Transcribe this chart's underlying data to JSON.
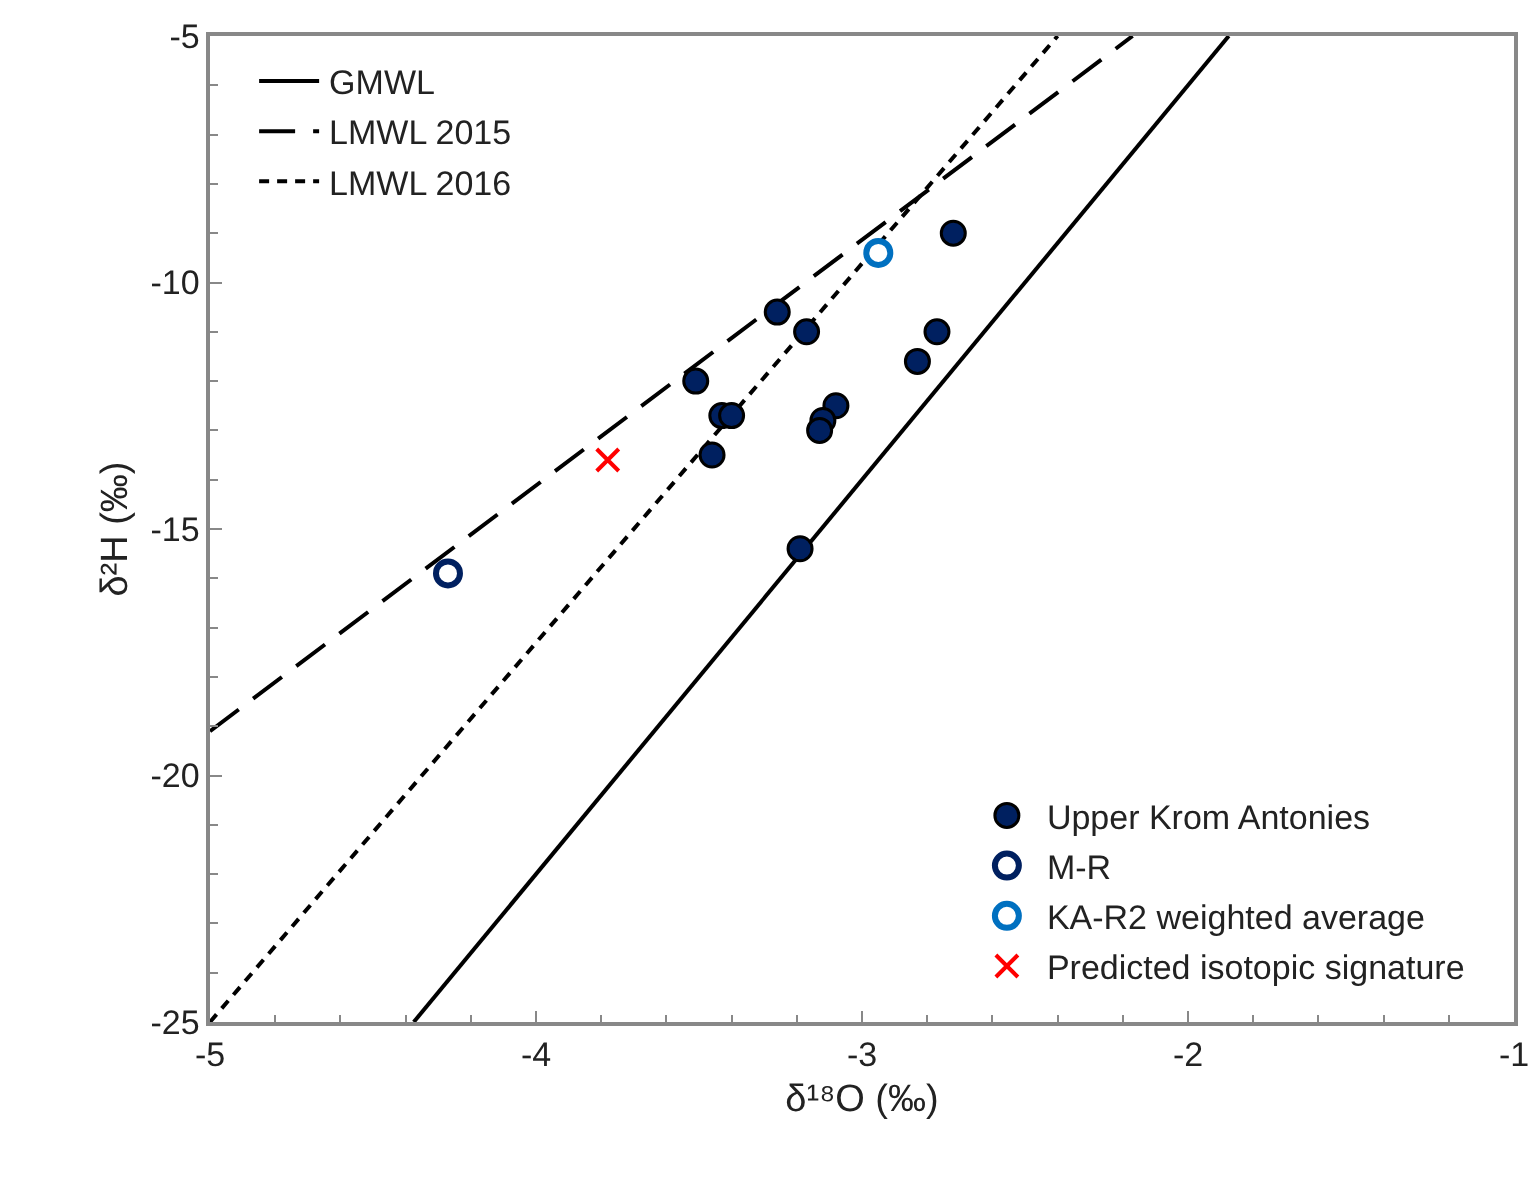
{
  "chart_data": {
    "type": "scatter",
    "xlabel": "δ¹⁸O (‰)",
    "ylabel": "δ²H (‰)",
    "xlim": [
      -5,
      -1
    ],
    "xticks": [
      -5,
      -4,
      -3,
      -2,
      -1
    ],
    "ylim": [
      -25,
      -5
    ],
    "yticks": [
      -25,
      -20,
      -15,
      -10,
      -5
    ],
    "grid": false,
    "legend": [
      "top left",
      "bottom right"
    ],
    "series": [
      {
        "name": "GMWL",
        "type": "line",
        "color": "#000000",
        "line_style": "solid",
        "marker": "none",
        "x": [
          -4.375,
          -1.875
        ],
        "values": [
          -25,
          -5
        ]
      },
      {
        "name": "LMWL 2015",
        "type": "line",
        "color": "#000000",
        "line_style": "dashed",
        "marker": "none",
        "x": [
          -5,
          -2.17
        ],
        "values": [
          -19.1,
          -5
        ]
      },
      {
        "name": "LMWL 2016",
        "type": "line",
        "color": "#000000",
        "line_style": "dotted",
        "marker": "none",
        "x": [
          -5,
          -2.4
        ],
        "values": [
          -25,
          -5
        ]
      },
      {
        "name": "Upper Krom Antonies",
        "color": "#002060",
        "marker": "circle",
        "x": [
          -3.26,
          -3.17,
          -3.51,
          -3.43,
          -3.4,
          -3.46,
          -3.08,
          -3.12,
          -3.13,
          -3.19,
          -2.72,
          -2.77,
          -2.83
        ],
        "values": [
          -10.6,
          -11.0,
          -12.0,
          -12.7,
          -12.7,
          -13.5,
          -12.5,
          -12.8,
          -13.0,
          -15.4,
          -9.0,
          -11.0,
          -11.6
        ]
      },
      {
        "name": "M-R",
        "color": "#002060",
        "marker": "circle-open",
        "x": [
          -4.27
        ],
        "values": [
          -15.9
        ]
      },
      {
        "name": "KA-R2 weighted average",
        "color": "#0070c0",
        "marker": "circle-open",
        "x": [
          -2.95
        ],
        "values": [
          -9.4
        ]
      },
      {
        "name": "Predicted isotopic signature",
        "color": "#ff0000",
        "marker": "cross",
        "x": [
          -3.78
        ],
        "values": [
          -13.6
        ]
      }
    ]
  }
}
